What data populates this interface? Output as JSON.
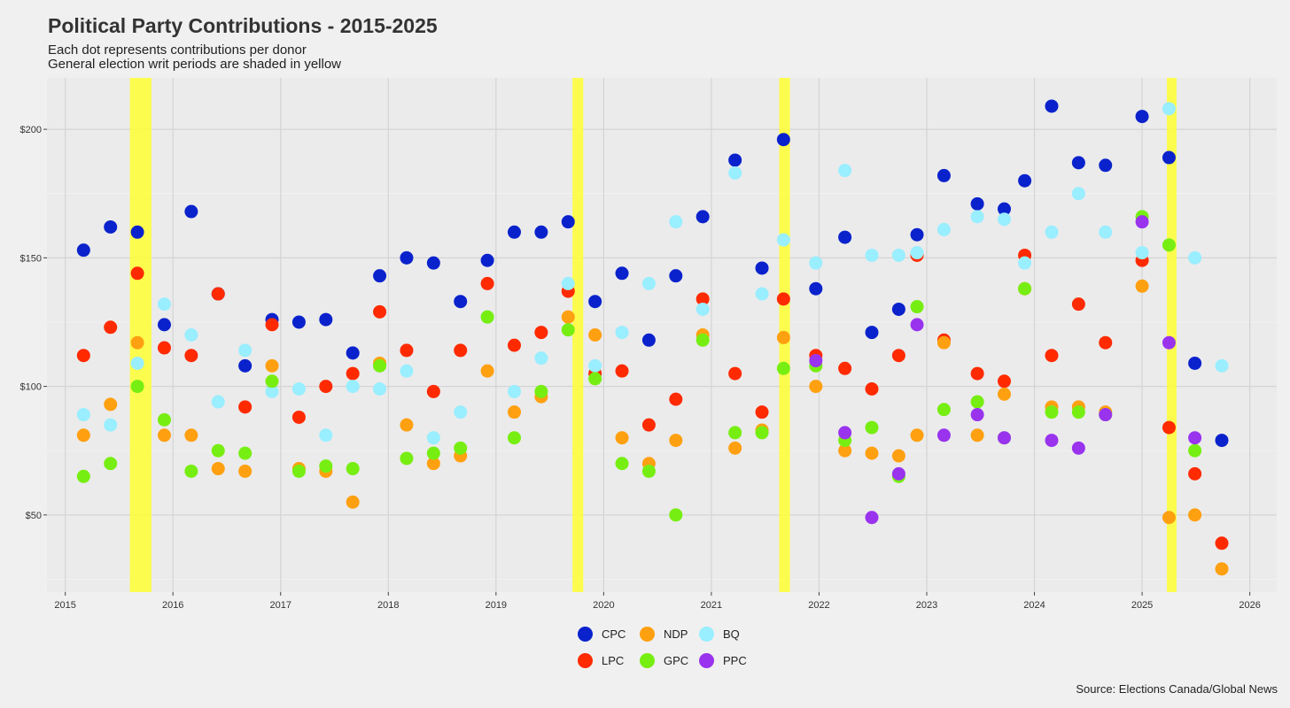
{
  "chart_data": {
    "type": "scatter",
    "title": "Political Party Contributions - 2015-2025",
    "subtitle_lines": [
      "Each dot represents contributions per donor",
      "General election writ periods are shaded in yellow"
    ],
    "xlabel": "",
    "ylabel": "",
    "xlim": [
      2014.83,
      2026.25
    ],
    "ylim": [
      20,
      220
    ],
    "x_ticks": [
      2015,
      2016,
      2017,
      2018,
      2019,
      2020,
      2021,
      2022,
      2023,
      2024,
      2025,
      2026
    ],
    "x_tick_labels": [
      "2015",
      "2016",
      "2017",
      "2018",
      "2019",
      "2020",
      "2021",
      "2022",
      "2023",
      "2024",
      "2025",
      "2026"
    ],
    "y_ticks": [
      50,
      100,
      150,
      200
    ],
    "y_tick_labels": [
      "$50",
      "$100",
      "$150",
      "$200"
    ],
    "grid": true,
    "legend_position": "bottom",
    "writ_periods": [
      [
        2015.6,
        2015.8
      ],
      [
        2019.71,
        2019.81
      ],
      [
        2021.63,
        2021.73
      ],
      [
        2025.23,
        2025.32
      ]
    ],
    "writ_color": "#ffff33",
    "series": [
      {
        "name": "CPC",
        "color": "#0a22cc",
        "x": [
          2015.17,
          2015.42,
          2015.67,
          2015.92,
          2016.17,
          2016.42,
          2016.67,
          2016.92,
          2017.17,
          2017.42,
          2017.67,
          2017.92,
          2018.17,
          2018.42,
          2018.67,
          2018.92,
          2019.17,
          2019.42,
          2019.67,
          2019.92,
          2020.17,
          2020.42,
          2020.67,
          2020.92,
          2021.22,
          2021.47,
          2021.67,
          2021.97,
          2022.24,
          2022.49,
          2022.74,
          2022.91,
          2023.16,
          2023.47,
          2023.72,
          2023.91,
          2024.16,
          2024.41,
          2024.66,
          2025.0,
          2025.25,
          2025.49,
          2025.74
        ],
        "y": [
          153,
          162,
          160,
          124,
          168,
          136,
          108,
          126,
          125,
          126,
          113,
          143,
          150,
          148,
          133,
          149,
          160,
          160,
          164,
          133,
          144,
          118,
          143,
          166,
          188,
          146,
          196,
          138,
          158,
          121,
          130,
          159,
          182,
          171,
          169,
          180,
          209,
          187,
          186,
          205,
          189,
          109,
          79
        ]
      },
      {
        "name": "LPC",
        "color": "#ff2a00",
        "x": [
          2015.17,
          2015.42,
          2015.67,
          2015.92,
          2016.17,
          2016.42,
          2016.67,
          2016.92,
          2017.17,
          2017.42,
          2017.67,
          2017.92,
          2018.17,
          2018.42,
          2018.67,
          2018.92,
          2019.17,
          2019.42,
          2019.67,
          2019.92,
          2020.17,
          2020.42,
          2020.67,
          2020.92,
          2021.22,
          2021.47,
          2021.67,
          2021.97,
          2022.24,
          2022.49,
          2022.74,
          2022.91,
          2023.16,
          2023.47,
          2023.72,
          2023.91,
          2024.16,
          2024.41,
          2024.66,
          2025.0,
          2025.25,
          2025.49,
          2025.74
        ],
        "y": [
          112,
          123,
          144,
          115,
          112,
          136,
          92,
          124,
          88,
          100,
          105,
          129,
          114,
          98,
          114,
          140,
          116,
          121,
          137,
          105,
          106,
          85,
          95,
          134,
          105,
          90,
          134,
          112,
          107,
          99,
          112,
          151,
          118,
          105,
          102,
          151,
          112,
          132,
          117,
          149,
          84,
          66,
          39
        ]
      },
      {
        "name": "NDP",
        "color": "#ffa010",
        "x": [
          2015.17,
          2015.42,
          2015.67,
          2015.92,
          2016.17,
          2016.42,
          2016.67,
          2016.92,
          2017.17,
          2017.42,
          2017.67,
          2017.92,
          2018.17,
          2018.42,
          2018.67,
          2018.92,
          2019.17,
          2019.42,
          2019.67,
          2019.92,
          2020.17,
          2020.42,
          2020.67,
          2020.92,
          2021.22,
          2021.47,
          2021.67,
          2021.97,
          2022.24,
          2022.49,
          2022.74,
          2022.91,
          2023.16,
          2023.47,
          2023.72,
          2023.91,
          2024.16,
          2024.41,
          2024.66,
          2025.0,
          2025.25,
          2025.49,
          2025.74
        ],
        "y": [
          81,
          93,
          117,
          81,
          81,
          68,
          67,
          108,
          68,
          67,
          55,
          109,
          85,
          70,
          73,
          106,
          90,
          96,
          127,
          120,
          80,
          70,
          79,
          120,
          76,
          83,
          119,
          100,
          75,
          74,
          73,
          81,
          117,
          81,
          97,
          138,
          92,
          92,
          90,
          139,
          49,
          50,
          29
        ]
      },
      {
        "name": "BQ",
        "color": "#99eeff",
        "x": [
          2015.17,
          2015.42,
          2015.67,
          2015.92,
          2016.17,
          2016.42,
          2016.67,
          2016.92,
          2017.17,
          2017.42,
          2017.67,
          2017.92,
          2018.17,
          2018.42,
          2018.67,
          2018.92,
          2019.17,
          2019.42,
          2019.67,
          2019.92,
          2020.17,
          2020.42,
          2020.67,
          2020.92,
          2021.22,
          2021.47,
          2021.67,
          2021.97,
          2022.24,
          2022.49,
          2022.74,
          2022.91,
          2023.16,
          2023.47,
          2023.72,
          2023.91,
          2024.16,
          2024.41,
          2024.66,
          2025.0,
          2025.25,
          2025.49,
          2025.74
        ],
        "y": [
          89,
          85,
          109,
          132,
          120,
          94,
          114,
          98,
          99,
          81,
          100,
          99,
          106,
          80,
          90,
          127,
          98,
          111,
          140,
          108,
          121,
          140,
          164,
          130,
          183,
          136,
          157,
          148,
          184,
          151,
          151,
          152,
          161,
          166,
          165,
          148,
          160,
          175,
          160,
          152,
          208,
          150,
          108
        ]
      },
      {
        "name": "GPC",
        "color": "#77ee11",
        "x": [
          2015.17,
          2015.42,
          2015.67,
          2015.92,
          2016.17,
          2016.42,
          2016.67,
          2016.92,
          2017.17,
          2017.42,
          2017.67,
          2017.92,
          2018.17,
          2018.42,
          2018.67,
          2018.92,
          2019.17,
          2019.42,
          2019.67,
          2019.92,
          2020.17,
          2020.42,
          2020.67,
          2020.92,
          2021.22,
          2021.47,
          2021.67,
          2021.97,
          2022.24,
          2022.49,
          2022.74,
          2022.91,
          2023.16,
          2023.47,
          2023.72,
          2023.91,
          2024.16,
          2024.41,
          2024.66,
          2025.0,
          2025.25,
          2025.49
        ],
        "y": [
          65,
          70,
          100,
          87,
          67,
          75,
          74,
          102,
          67,
          69,
          68,
          108,
          72,
          74,
          76,
          127,
          80,
          98,
          122,
          103,
          70,
          67,
          50,
          118,
          82,
          82,
          107,
          108,
          79,
          84,
          65,
          131,
          91,
          94,
          80,
          138,
          90,
          90,
          89,
          166,
          155,
          75
        ]
      },
      {
        "name": "PPC",
        "color": "#9933ee",
        "x": [
          2021.97,
          2022.24,
          2022.49,
          2022.74,
          2022.91,
          2023.16,
          2023.47,
          2023.72,
          2024.16,
          2024.41,
          2024.66,
          2025.0,
          2025.25,
          2025.49
        ],
        "y": [
          110,
          82,
          49,
          66,
          124,
          81,
          89,
          80,
          79,
          76,
          89,
          164,
          117,
          80
        ]
      }
    ],
    "source": "Source: Elections Canada/Global News"
  }
}
